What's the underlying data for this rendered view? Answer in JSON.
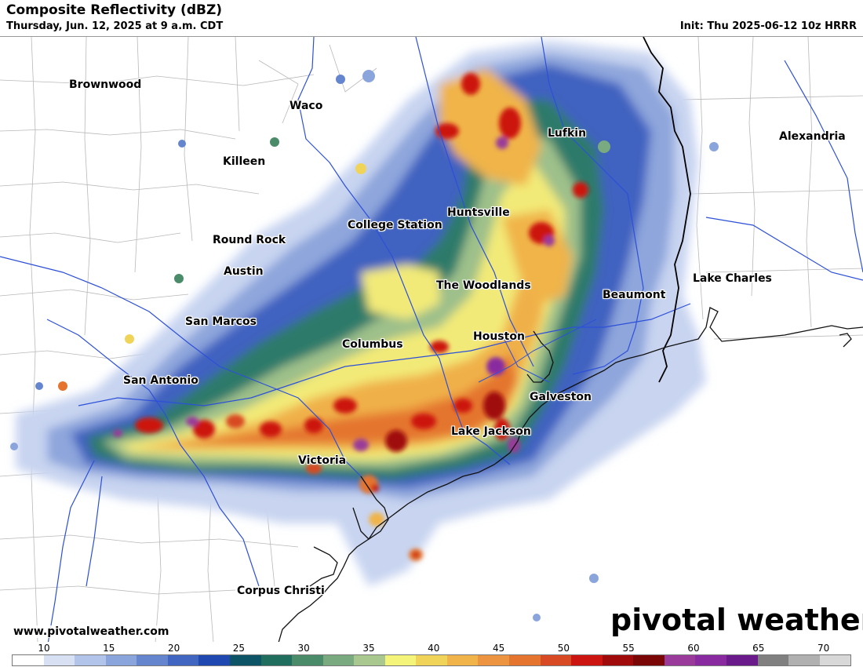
{
  "header": {
    "title": "Composite Reflectivity (dBZ)",
    "subtitle": "Thursday, Jun. 12, 2025 at 9 a.m. CDT",
    "init": "Init: Thu 2025-06-12 10z HRRR"
  },
  "cities": [
    {
      "name": "Brownwood"
    },
    {
      "name": "Waco"
    },
    {
      "name": "Killeen"
    },
    {
      "name": "Lufkin"
    },
    {
      "name": "Alexandria"
    },
    {
      "name": "Huntsville"
    },
    {
      "name": "College Station"
    },
    {
      "name": "Round Rock"
    },
    {
      "name": "Austin"
    },
    {
      "name": "The Woodlands"
    },
    {
      "name": "Lake Charles"
    },
    {
      "name": "Beaumont"
    },
    {
      "name": "San Marcos"
    },
    {
      "name": "Houston"
    },
    {
      "name": "Columbus"
    },
    {
      "name": "San Antonio"
    },
    {
      "name": "Galveston"
    },
    {
      "name": "Lake Jackson"
    },
    {
      "name": "Victoria"
    },
    {
      "name": "Corpus Christi"
    }
  ],
  "footer": {
    "website": "www.pivotalweather.com",
    "brand": "pivotal weather"
  },
  "colorbar": {
    "ticks": [
      "10",
      "15",
      "20",
      "25",
      "30",
      "35",
      "40",
      "45",
      "50",
      "55",
      "60",
      "65",
      "70"
    ],
    "colors": [
      "#ffffff",
      "#d8e0f4",
      "#b2c4ea",
      "#8aa4dc",
      "#6585cf",
      "#4066c2",
      "#1f48b0",
      "#0d5466",
      "#1f6e5e",
      "#4a8c6a",
      "#7aab80",
      "#a8c890",
      "#f4f47a",
      "#f0d45a",
      "#f0b44a",
      "#ec9440",
      "#e4742e",
      "#d84a24",
      "#cc1410",
      "#a00a0a",
      "#7a0606",
      "#9a3a9a",
      "#8a2aa0",
      "#6a1a8a",
      "#808080",
      "#b0b0b0",
      "#d8d8d8"
    ]
  }
}
